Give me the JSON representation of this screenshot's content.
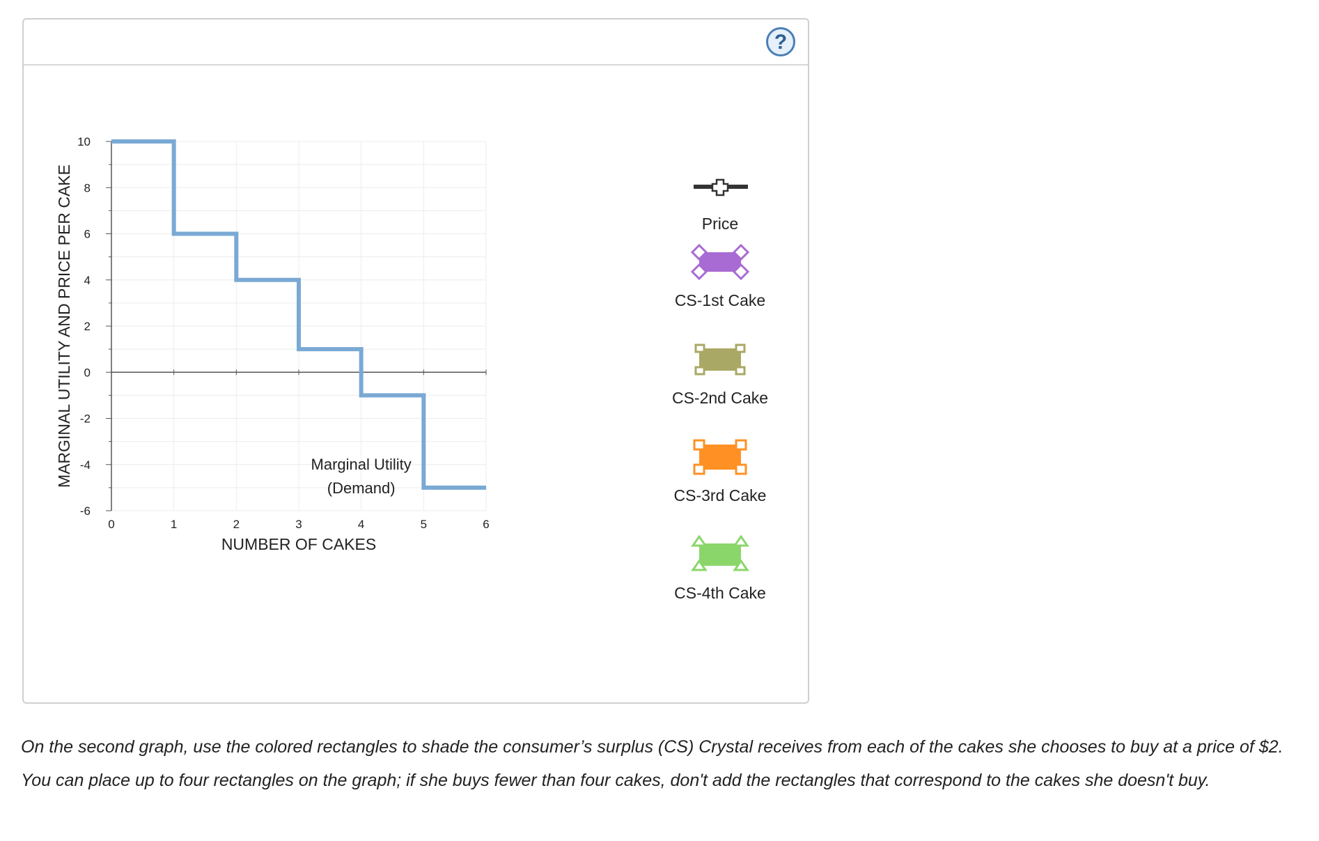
{
  "help": {
    "label": "?"
  },
  "chart_data": {
    "type": "line",
    "step": true,
    "xlabel": "NUMBER OF CAKES",
    "ylabel": "MARGINAL UTILITY AND PRICE PER CAKE",
    "xlim": [
      0,
      6
    ],
    "ylim": [
      -6,
      10
    ],
    "x_ticks": [
      0,
      1,
      2,
      3,
      4,
      5,
      6
    ],
    "y_ticks": [
      10,
      8,
      6,
      4,
      2,
      0,
      -2,
      -4,
      -6
    ],
    "grid": true,
    "series": [
      {
        "name": "Marginal Utility (Demand)",
        "color": "#7aa9d4",
        "points": [
          [
            0,
            10
          ],
          [
            1,
            10
          ],
          [
            1,
            6
          ],
          [
            2,
            6
          ],
          [
            2,
            4
          ],
          [
            3,
            4
          ],
          [
            3,
            1
          ],
          [
            4,
            1
          ],
          [
            4,
            -1
          ],
          [
            5,
            -1
          ],
          [
            5,
            -5
          ],
          [
            6,
            -5
          ]
        ]
      }
    ],
    "annotation": {
      "line1": "Marginal Utility",
      "line2": "(Demand)",
      "x": 4,
      "y": -4.4
    }
  },
  "palette": [
    {
      "label": "Price",
      "shape": "cross-line-icon",
      "color": "#333333"
    },
    {
      "label": "CS-1st Cake",
      "shape": "diamond-rect-icon",
      "color": "#a86ad3"
    },
    {
      "label": "CS-2nd Cake",
      "shape": "square-rect-icon",
      "color": "#aaa865"
    },
    {
      "label": "CS-3rd Cake",
      "shape": "square-rect-icon",
      "color": "#ff9124"
    },
    {
      "label": "CS-4th Cake",
      "shape": "triangle-rect-icon",
      "color": "#8ad66a"
    }
  ],
  "instructions": "On the second graph, use the colored rectangles to shade the consumer’s surplus (CS) Crystal receives from each of the cakes she chooses to buy at a price of $2. You can place up to four rectangles on the graph; if she buys fewer than four cakes, don't add the rectangles that correspond to the cakes she doesn't buy."
}
